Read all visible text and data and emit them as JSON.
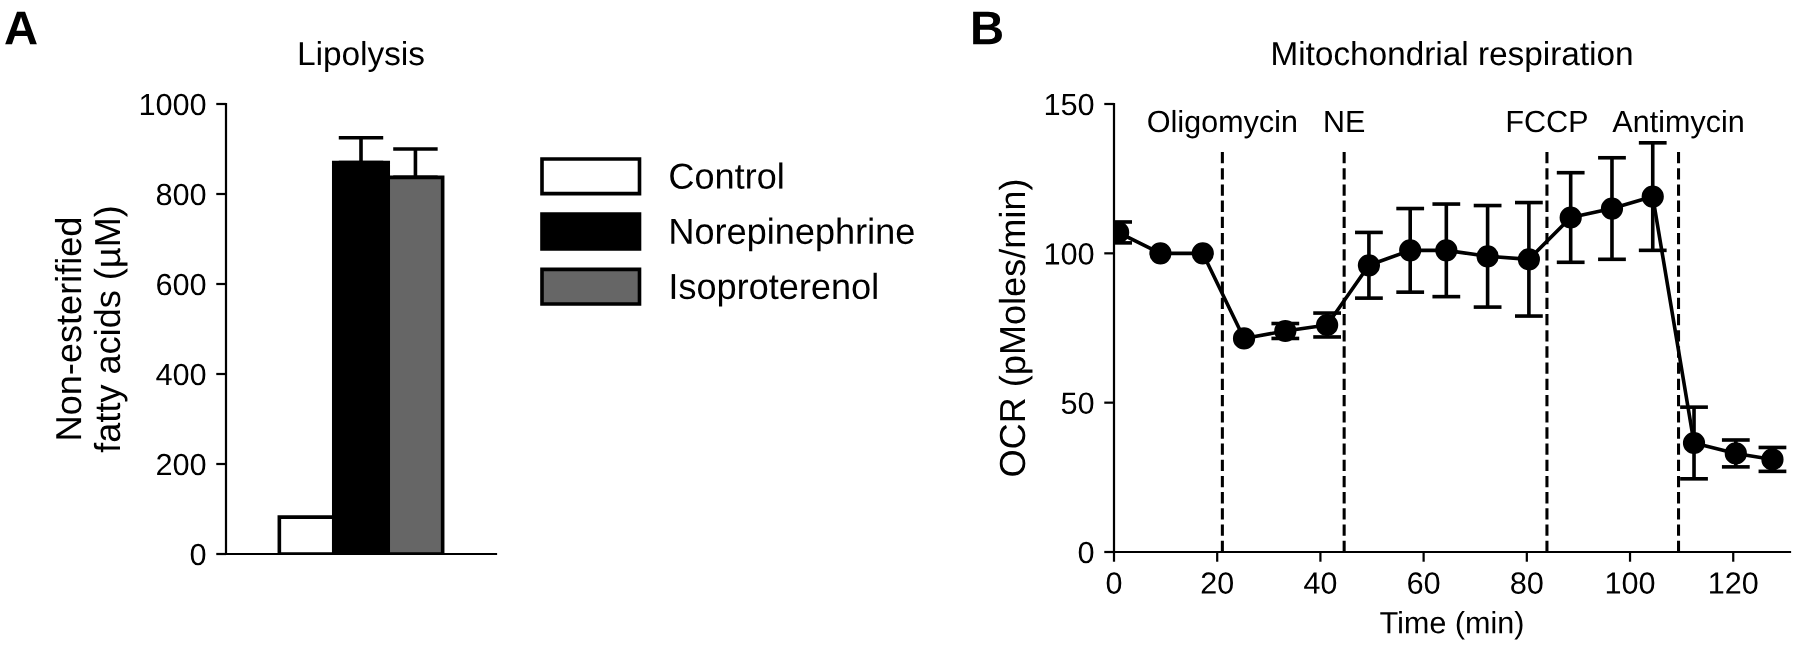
{
  "chart_data": [
    {
      "type": "bar",
      "title": "Lipolysis",
      "ylabel": "Non-esterified\nfatty acids (µM)",
      "annotations": [
        "A"
      ],
      "categories": [
        null
      ],
      "legend": "right",
      "ylim": [
        0,
        1000
      ],
      "yticks": [
        0,
        200,
        400,
        600,
        800,
        1000
      ],
      "series": [
        {
          "name": "Control",
          "color": "#ffffff",
          "values": [
            82
          ]
        },
        {
          "name": "Norepinephrine",
          "color": "#000000",
          "values": [
            870
          ],
          "errors": [
            [
              870,
              925
            ]
          ]
        },
        {
          "name": "Isoproterenol",
          "color": "#666666",
          "values": [
            837
          ],
          "errors": [
            [
              837,
              900
            ]
          ]
        }
      ]
    },
    {
      "type": "line",
      "title": "Mitochondrial respiration",
      "xlabel": "Time (min)",
      "ylabel": "OCR (pMoles/min)",
      "annotations": [
        "B"
      ],
      "marker": "circle",
      "line_style": "solid",
      "xlim": [
        0,
        131
      ],
      "xticks": [
        0,
        20,
        40,
        60,
        80,
        100,
        120
      ],
      "ylim": [
        0,
        150
      ],
      "yticks": [
        0,
        50,
        100,
        150
      ],
      "ref_lines": [
        {
          "axis": "x",
          "value": 21,
          "label": "Oligomycin",
          "line_style": "dashed"
        },
        {
          "axis": "x",
          "value": 44.6,
          "label": "NE",
          "line_style": "dashed"
        },
        {
          "axis": "x",
          "value": 83.9,
          "label": "FCCP",
          "line_style": "dashed"
        },
        {
          "axis": "x",
          "value": 109.4,
          "label": "Antimycin",
          "line_style": "dashed"
        }
      ],
      "series": [
        {
          "color": "#000000",
          "x": [
            0.8,
            9,
            17.2,
            25.2,
            33.2,
            41.3,
            49.4,
            57.4,
            64.4,
            72.4,
            80.4,
            88.5,
            96.5,
            104.4,
            112.4,
            120.5,
            127.6
          ],
          "values": [
            107,
            100,
            100,
            71.5,
            74,
            76,
            96,
            101,
            101,
            99,
            98,
            112,
            115,
            119,
            36.5,
            33,
            31
          ],
          "errors": [
            3.5,
            null,
            null,
            null,
            2.5,
            4,
            11,
            14,
            15.5,
            17,
            19,
            15,
            17,
            18,
            12,
            4.5,
            4
          ]
        }
      ]
    }
  ]
}
